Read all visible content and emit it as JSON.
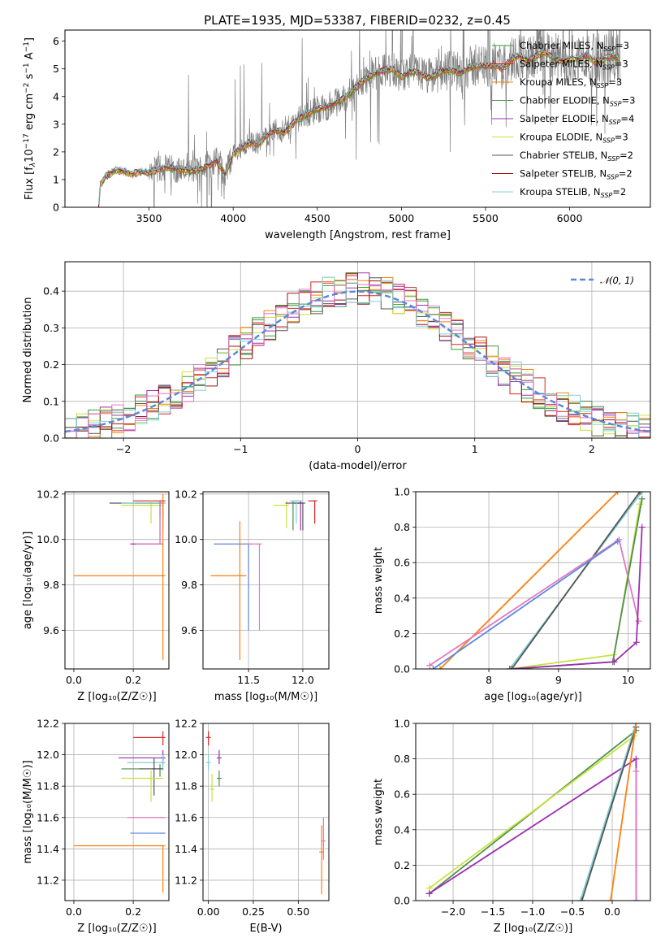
{
  "figure": {
    "title": "PLATE=1935, MJD=53387, FIBERID=0232, z=0.45"
  },
  "chart_data": [
    {
      "id": "spectrum",
      "type": "line",
      "title": "PLATE=1935, MJD=53387, FIBERID=0232, z=0.45",
      "xlabel": "wavelength [Angstrom, rest frame]",
      "ylabel_parts": [
        "Flux [f",
        "λ",
        "10",
        "−17",
        " erg cm",
        "−2",
        " s",
        "−1",
        " A",
        "−1",
        "]"
      ],
      "xlim": [
        3000,
        6480
      ],
      "ylim": [
        0,
        6.4
      ],
      "xticks": [
        3500,
        4000,
        4500,
        5000,
        5500,
        6000
      ],
      "yticks": [
        0,
        1,
        2,
        3,
        4,
        5,
        6
      ],
      "grid": false,
      "legend_position": "upper right",
      "data_color": "#808080",
      "data_trend": {
        "x": [
          3200,
          3210,
          3240,
          3300,
          3350,
          3400,
          3450,
          3500,
          3550,
          3600,
          3650,
          3700,
          3750,
          3800,
          3850,
          3900,
          3950,
          4000,
          4050,
          4100,
          4150,
          4200,
          4250,
          4300,
          4350,
          4400,
          4450,
          4500,
          4550,
          4600,
          4650,
          4700,
          4750,
          4800,
          4850,
          4900,
          4950,
          5000,
          5050,
          5100,
          5150,
          5200,
          5250,
          5300,
          5350,
          5400,
          5450,
          5500,
          5550,
          5600,
          5650,
          5700,
          5750,
          5800,
          5850,
          5900,
          5950,
          6000,
          6050,
          6100,
          6150,
          6200,
          6250,
          6300
        ],
        "y": [
          0,
          0.8,
          1.1,
          1.35,
          1.3,
          1.2,
          1.3,
          1.25,
          1.35,
          1.45,
          1.4,
          1.35,
          1.3,
          1.4,
          1.5,
          1.7,
          1.2,
          1.9,
          2.15,
          2.35,
          2.3,
          2.6,
          2.8,
          2.7,
          3.0,
          3.25,
          3.4,
          3.55,
          3.6,
          3.75,
          3.9,
          4.15,
          4.45,
          4.7,
          4.85,
          4.95,
          5.0,
          4.7,
          4.9,
          4.9,
          4.7,
          4.75,
          4.95,
          4.95,
          4.85,
          5.05,
          5.1,
          5.1,
          5.15,
          5.0,
          5.35,
          5.5,
          5.3,
          5.45,
          5.6,
          5.4,
          5.3,
          5.35,
          5.35,
          5.5,
          5.25,
          5.35,
          5.45,
          5.4
        ]
      },
      "noise_rises_above": 3500,
      "series": [
        {
          "name": "Chabrier MILES",
          "n_ssp": "3",
          "color": "#2ca02c"
        },
        {
          "name": "Salpeter MILES",
          "n_ssp": "3",
          "color": "#d62728"
        },
        {
          "name": "Kroupa MILES",
          "n_ssp": "3",
          "color": "#ff7f0e"
        },
        {
          "name": "Chabrier ELODIE",
          "n_ssp": "3",
          "color": "#4f8f4f"
        },
        {
          "name": "Salpeter ELODIE",
          "n_ssp": "4",
          "color": "#9b30b0"
        },
        {
          "name": "Kroupa ELODIE",
          "n_ssp": "3",
          "color": "#c7e33a"
        },
        {
          "name": "Chabrier STELIB",
          "n_ssp": "2",
          "color": "#555555"
        },
        {
          "name": "Salpeter STELIB",
          "n_ssp": "2",
          "color": "#a01010"
        },
        {
          "name": "Kroupa STELIB",
          "n_ssp": "2",
          "color": "#7fcfd8"
        }
      ],
      "legend_subscript": "SSP"
    },
    {
      "id": "residuals",
      "type": "line",
      "xlabel": "(data-model)/error",
      "ylabel": "Normed distribution",
      "xlim": [
        -2.5,
        2.5
      ],
      "ylim": [
        0,
        0.48
      ],
      "xticks": [
        -2,
        -1,
        0,
        1,
        2
      ],
      "xtick_labels": [
        "−2",
        "−1",
        "0",
        "1",
        "2"
      ],
      "yticks": [
        0,
        0.1,
        0.2,
        0.3,
        0.4
      ],
      "ytick_labels": [
        "0.0",
        "0.1",
        "0.2",
        "0.3",
        "0.4"
      ],
      "grid": true,
      "legend_position": "upper right",
      "reference_curve": {
        "name": "𝒩(0, 1)",
        "mean": 0,
        "sigma": 1,
        "color": "#5b87dd"
      },
      "histogram_bin_width": 0.1,
      "series_colors": [
        "#2ca02c",
        "#d62728",
        "#ff7f0e",
        "#4f8f4f",
        "#9b30b0",
        "#c7e33a",
        "#555555",
        "#a01010",
        "#7fcfd8",
        "#e377c2"
      ]
    },
    {
      "id": "age-vs-Z",
      "type": "scatter",
      "xlabel": "Z [log₁₀(Z/Z☉)]",
      "ylabel": "age  [log₁₀(age/yr)]",
      "xlim": [
        -0.03,
        0.32
      ],
      "ylim": [
        9.43,
        10.21
      ],
      "xticks": [
        0.0,
        0.2
      ],
      "xtick_labels": [
        "0.0",
        "0.2"
      ],
      "yticks": [
        9.6,
        9.8,
        10.0,
        10.2
      ],
      "ytick_labels": [
        "9.6",
        "9.8",
        "10.0",
        "10.2"
      ],
      "grid": true,
      "points": [
        {
          "color": "#d62728",
          "x": 0.3,
          "xerr": [
            0.1,
            0.0
          ],
          "y": 10.17,
          "yerr": [
            0.06,
            0.0
          ]
        },
        {
          "color": "#555555",
          "x": 0.3,
          "xerr": [
            0.18,
            0.0
          ],
          "y": 10.16,
          "yerr": [
            0.08,
            0.0
          ]
        },
        {
          "color": "#c7e33a",
          "x": 0.26,
          "xerr": [
            0.1,
            0.04
          ],
          "y": 10.15,
          "yerr": [
            0.08,
            0.02
          ]
        },
        {
          "color": "#4f8f4f",
          "x": 0.29,
          "xerr": [
            0.08,
            0.01
          ],
          "y": 10.16,
          "yerr": [
            0.06,
            0.01
          ]
        },
        {
          "color": "#7fcfd8",
          "x": 0.3,
          "xerr": [
            0.14,
            0.0
          ],
          "y": 10.16,
          "yerr": [
            0.12,
            0.0
          ]
        },
        {
          "color": "#9b30b0",
          "x": 0.29,
          "xerr": [
            0.1,
            0.01
          ],
          "y": 9.98,
          "yerr": [
            0.0,
            0.19
          ]
        },
        {
          "color": "#e377c2",
          "x": 0.29,
          "xerr": [
            0.08,
            0.01
          ],
          "y": 9.98,
          "yerr": [
            0.0,
            0.19
          ]
        },
        {
          "color": "#ff7f0e",
          "x": 0.3,
          "xerr": [
            0.3,
            0.0
          ],
          "y": 9.84,
          "yerr": [
            0.37,
            0.36
          ]
        }
      ]
    },
    {
      "id": "age-vs-mass",
      "type": "scatter",
      "xlabel": "mass [log₁₀(M/M☉)]",
      "ylabel": "",
      "xlim": [
        11.08,
        12.24
      ],
      "ylim": [
        9.43,
        10.21
      ],
      "xticks": [
        11.5,
        12.0
      ],
      "xtick_labels": [
        "11.5",
        "12.0"
      ],
      "yticks": [
        9.6,
        9.8,
        10.0,
        10.2
      ],
      "ytick_labels": [
        "9.6",
        "9.8",
        "10.0",
        "10.2"
      ],
      "grid": true,
      "points": [
        {
          "color": "#ff7f0e",
          "x": 11.42,
          "xerr": [
            0.27,
            0.06
          ],
          "y": 9.84,
          "yerr": [
            0.37,
            0.24
          ]
        },
        {
          "color": "#5b87dd",
          "x": 11.5,
          "xerr": [
            0.32,
            0.0
          ],
          "y": 9.98,
          "yerr": [
            0.38,
            0.0
          ]
        },
        {
          "color": "#e377c2",
          "x": 11.6,
          "xerr": [
            0.13,
            0.0
          ],
          "y": 9.98,
          "yerr": [
            0.38,
            0.0
          ]
        },
        {
          "color": "#c7e33a",
          "x": 11.85,
          "xerr": [
            0.12,
            0.0
          ],
          "y": 10.15,
          "yerr": [
            0.1,
            0.02
          ]
        },
        {
          "color": "#9b30b0",
          "x": 11.98,
          "xerr": [
            0.14,
            0.0
          ],
          "y": 10.16,
          "yerr": [
            0.12,
            0.01
          ]
        },
        {
          "color": "#4f8f4f",
          "x": 11.91,
          "xerr": [
            0.0,
            0.06
          ],
          "y": 10.16,
          "yerr": [
            0.12,
            0.01
          ]
        },
        {
          "color": "#555555",
          "x": 12.0,
          "xerr": [
            0.08,
            0.0
          ],
          "y": 10.16,
          "yerr": [
            0.12,
            0.0
          ]
        },
        {
          "color": "#7fcfd8",
          "x": 11.94,
          "xerr": [
            0.06,
            0.06
          ],
          "y": 10.17,
          "yerr": [
            0.1,
            0.0
          ]
        },
        {
          "color": "#d62728",
          "x": 12.11,
          "xerr": [
            0.06,
            0.0
          ],
          "y": 10.17,
          "yerr": [
            0.1,
            0.0
          ]
        }
      ]
    },
    {
      "id": "mass-weight-vs-age",
      "type": "line",
      "xlabel": "age  [log₁₀(age/yr)]",
      "ylabel": "mass weight",
      "xlim": [
        6.95,
        10.32
      ],
      "ylim": [
        0,
        1.0
      ],
      "xticks": [
        8,
        9,
        10
      ],
      "yticks": [
        0,
        0.2,
        0.4,
        0.6,
        0.8,
        1.0
      ],
      "ytick_labels": [
        "0.0",
        "0.2",
        "0.4",
        "0.6",
        "0.8",
        "1.0"
      ],
      "grid": true,
      "series": [
        {
          "color": "#ff7f0e",
          "x": [
            7.3,
            9.85
          ],
          "y": [
            0.0,
            1.0
          ]
        },
        {
          "color": "#7fcfd8",
          "x": [
            8.3,
            10.2
          ],
          "y": [
            0.0,
            1.0
          ]
        },
        {
          "color": "#555555",
          "x": [
            8.33,
            10.17
          ],
          "y": [
            0.0,
            1.0
          ]
        },
        {
          "color": "#e377c2",
          "x": [
            7.15,
            9.87,
            10.15
          ],
          "y": [
            0.02,
            0.73,
            0.27
          ]
        },
        {
          "color": "#5b87dd",
          "x": [
            7.2,
            9.85
          ],
          "y": [
            0.0,
            0.72
          ]
        },
        {
          "color": "#c7e33a",
          "x": [
            8.3,
            9.8,
            10.17
          ],
          "y": [
            0.0,
            0.08,
            0.93
          ]
        },
        {
          "color": "#4f8f4f",
          "x": [
            8.35,
            9.78,
            10.2
          ],
          "y": [
            0.0,
            0.04,
            0.96
          ]
        },
        {
          "color": "#9b30b0",
          "x": [
            8.3,
            9.8,
            10.12,
            10.2
          ],
          "y": [
            0.0,
            0.04,
            0.15,
            0.8
          ]
        }
      ]
    },
    {
      "id": "mass-vs-Z",
      "type": "scatter",
      "xlabel": "Z [log₁₀(Z/Z☉)]",
      "ylabel": "mass [log₁₀(M/M☉)]",
      "xlim": [
        -0.03,
        0.32
      ],
      "ylim": [
        11.07,
        12.2
      ],
      "xticks": [
        0.0,
        0.2
      ],
      "xtick_labels": [
        "0.0",
        "0.2"
      ],
      "yticks": [
        11.2,
        11.4,
        11.6,
        11.8,
        12.0,
        12.2
      ],
      "ytick_labels": [
        "11.2",
        "11.4",
        "11.6",
        "11.8",
        "12.0",
        "12.2"
      ],
      "grid": true,
      "points": [
        {
          "color": "#d62728",
          "x": 0.3,
          "xerr": [
            0.1,
            0.0
          ],
          "y": 12.11,
          "yerr": [
            0.05,
            0.04
          ]
        },
        {
          "color": "#9b30b0",
          "x": 0.3,
          "xerr": [
            0.15,
            0.0
          ],
          "y": 11.98,
          "yerr": [
            0.04,
            0.05
          ]
        },
        {
          "color": "#7fcfd8",
          "x": 0.3,
          "xerr": [
            0.12,
            0.0
          ],
          "y": 11.95,
          "yerr": [
            0.05,
            0.05
          ]
        },
        {
          "color": "#4f8f4f",
          "x": 0.29,
          "xerr": [
            0.13,
            0.01
          ],
          "y": 11.91,
          "yerr": [
            0.05,
            0.03
          ]
        },
        {
          "color": "#555555",
          "x": 0.27,
          "xerr": [
            0.05,
            0.03
          ],
          "y": 11.91,
          "yerr": [
            0.17,
            0.07
          ]
        },
        {
          "color": "#c7e33a",
          "x": 0.26,
          "xerr": [
            0.1,
            0.04
          ],
          "y": 11.85,
          "yerr": [
            0.15,
            0.05
          ]
        },
        {
          "color": "#e377c2",
          "x": 0.3,
          "xerr": [
            0.12,
            0.0
          ],
          "y": 11.6,
          "yerr": [
            0.0,
            0.0
          ]
        },
        {
          "color": "#5b87dd",
          "x": 0.3,
          "xerr": [
            0.11,
            0.0
          ],
          "y": 11.5,
          "yerr": [
            0.0,
            0.0
          ]
        },
        {
          "color": "#ff7f0e",
          "x": 0.3,
          "xerr": [
            0.3,
            0.0
          ],
          "y": 11.42,
          "yerr": [
            0.3,
            0.0
          ]
        }
      ]
    },
    {
      "id": "mass-vs-EBV",
      "type": "scatter",
      "xlabel": "E(B-V)",
      "ylabel": "",
      "xlim": [
        -0.03,
        0.67
      ],
      "ylim": [
        11.07,
        12.2
      ],
      "xticks": [
        0.0,
        0.25,
        0.5
      ],
      "xtick_labels": [
        "0.00",
        "0.25",
        "0.50"
      ],
      "yticks": [
        11.2,
        11.4,
        11.6,
        11.8,
        12.0,
        12.2
      ],
      "ytick_labels": [
        "11.2",
        "11.4",
        "11.6",
        "11.8",
        "12.0",
        "12.2"
      ],
      "grid": true,
      "points": [
        {
          "color": "#d62728",
          "x": 0.0,
          "y": 12.11,
          "yerr": [
            0.05,
            0.04
          ]
        },
        {
          "color": "#7fcfd8",
          "x": 0.0,
          "y": 11.95,
          "yerr": [
            0.05,
            0.05
          ]
        },
        {
          "color": "#9b30b0",
          "x": 0.06,
          "y": 11.98,
          "yerr": [
            0.04,
            0.05
          ]
        },
        {
          "color": "#c7e33a",
          "x": 0.02,
          "y": 11.78,
          "yerr": [
            0.08,
            0.1
          ]
        },
        {
          "color": "#4f8f4f",
          "x": 0.06,
          "y": 11.85,
          "yerr": [
            0.05,
            0.05
          ]
        },
        {
          "color": "#e377c2",
          "x": 0.64,
          "y": 11.45,
          "yerr": [
            0.12,
            0.15
          ]
        },
        {
          "color": "#ff7f0e",
          "x": 0.63,
          "y": 11.38,
          "yerr": [
            0.27,
            0.17
          ]
        }
      ]
    },
    {
      "id": "mass-weight-vs-Z",
      "type": "line",
      "xlabel": "Z [log₁₀(Z/Z☉)]",
      "ylabel": "mass weight",
      "xlim": [
        -2.47,
        0.48
      ],
      "ylim": [
        0,
        1.0
      ],
      "xticks": [
        -2.0,
        -1.5,
        -1.0,
        -0.5,
        0.0
      ],
      "xtick_labels": [
        "−2.0",
        "−1.5",
        "−1.0",
        "−0.5",
        "0.0"
      ],
      "yticks": [
        0,
        0.2,
        0.4,
        0.6,
        0.8,
        1.0
      ],
      "ytick_labels": [
        "0.0",
        "0.2",
        "0.4",
        "0.6",
        "0.8",
        "1.0"
      ],
      "grid": true,
      "series": [
        {
          "color": "#4f8f4f",
          "x": [
            -2.3,
            0.3
          ],
          "y": [
            0.04,
            0.96
          ]
        },
        {
          "color": "#c7e33a",
          "x": [
            -2.3,
            0.28
          ],
          "y": [
            0.07,
            0.93
          ]
        },
        {
          "color": "#9b30b0",
          "x": [
            -2.3,
            0.3,
            0.3
          ],
          "y": [
            0.04,
            0.8,
            0.0
          ]
        },
        {
          "color": "#7fcfd8",
          "x": [
            -0.4,
            0.3
          ],
          "y": [
            0.0,
            1.0
          ]
        },
        {
          "color": "#555555",
          "x": [
            -0.38,
            0.3
          ],
          "y": [
            0.0,
            0.98
          ]
        },
        {
          "color": "#ff7f0e",
          "x": [
            -0.02,
            0.3
          ],
          "y": [
            0.0,
            1.0
          ]
        },
        {
          "color": "#e377c2",
          "x": [
            0.3,
            0.3
          ],
          "y": [
            0.0,
            0.73
          ]
        }
      ]
    }
  ]
}
